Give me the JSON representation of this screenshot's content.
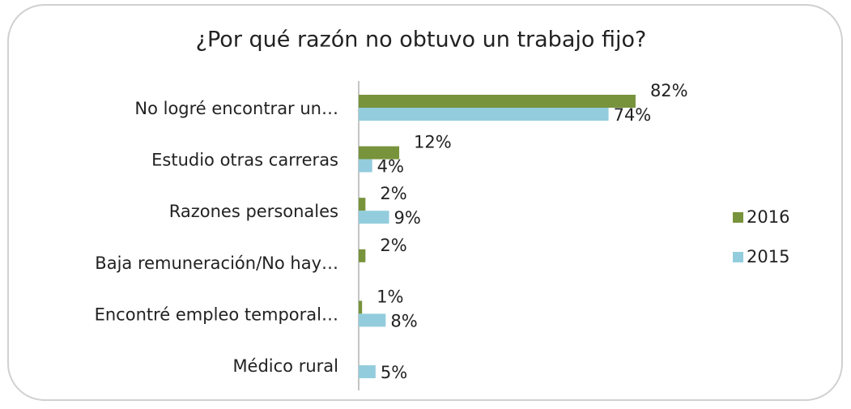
{
  "chart_data": {
    "type": "bar",
    "orientation": "horizontal",
    "title": "¿Por qué razón no obtuvo un trabajo fijo?",
    "categories": [
      "No logré encontrar un…",
      "Estudio otras carreras",
      "Razones personales",
      "Baja remuneración/No hay…",
      "Encontré empleo temporal…",
      "Médico rural"
    ],
    "series": [
      {
        "name": "2016",
        "color": "#77933c",
        "values": [
          82,
          12,
          2,
          2,
          1,
          null
        ],
        "value_labels": [
          "82%",
          "12%",
          "2%",
          "2%",
          "1%",
          null
        ]
      },
      {
        "name": "2015",
        "color": "#93cddd",
        "values": [
          74,
          4,
          9,
          null,
          8,
          5
        ],
        "value_labels": [
          "74%",
          "4%",
          "9%",
          null,
          "8%",
          "5%"
        ]
      }
    ],
    "xlim": [
      0,
      100
    ],
    "legend": "right"
  }
}
